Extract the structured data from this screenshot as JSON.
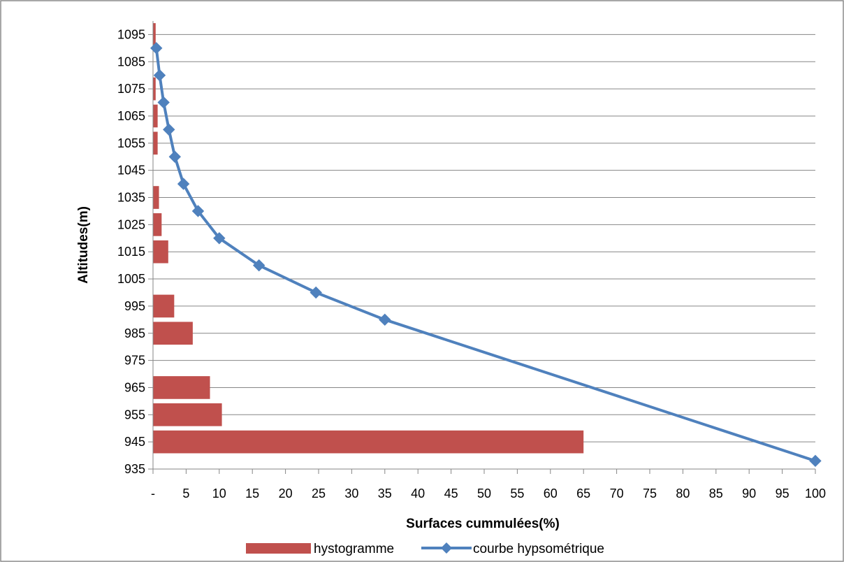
{
  "chart_data": {
    "type": "bar",
    "title": "",
    "xlabel": "Surfaces cummulées(%)",
    "ylabel": "Altitudes(m)",
    "xlim": [
      0,
      100
    ],
    "ylim": [
      935,
      1100
    ],
    "x_ticks": [
      0,
      5,
      10,
      15,
      20,
      25,
      30,
      35,
      40,
      45,
      50,
      55,
      60,
      65,
      70,
      75,
      80,
      85,
      90,
      95,
      100
    ],
    "x_tick_labels": [
      "-",
      "5",
      "10",
      "15",
      "20",
      "25",
      "30",
      "35",
      "40",
      "45",
      "50",
      "55",
      "60",
      "65",
      "70",
      "75",
      "80",
      "85",
      "90",
      "95",
      "100"
    ],
    "y_ticks": [
      935,
      945,
      955,
      965,
      975,
      985,
      995,
      1005,
      1015,
      1025,
      1035,
      1045,
      1055,
      1065,
      1075,
      1085,
      1095
    ],
    "y_tick_labels": [
      "935",
      "945",
      "955",
      "965",
      "975",
      "985",
      "995",
      "1005",
      "1015",
      "1025",
      "1035",
      "1045",
      "1055",
      "1065",
      "1075",
      "1085",
      "1095"
    ],
    "grid": true,
    "legend_position": "bottom",
    "series": [
      {
        "name": "hystogramme",
        "kind": "bar",
        "color": "#C0504D",
        "points": [
          {
            "altitude_from": 940,
            "altitude_to": 950,
            "value": 65.0
          },
          {
            "altitude_from": 950,
            "altitude_to": 960,
            "value": 10.4
          },
          {
            "altitude_from": 960,
            "altitude_to": 970,
            "value": 8.6
          },
          {
            "altitude_from": 970,
            "altitude_to": 980,
            "value": 0
          },
          {
            "altitude_from": 980,
            "altitude_to": 990,
            "value": 6.0
          },
          {
            "altitude_from": 990,
            "altitude_to": 1000,
            "value": 3.2
          },
          {
            "altitude_from": 1000,
            "altitude_to": 1010,
            "value": 0
          },
          {
            "altitude_from": 1010,
            "altitude_to": 1020,
            "value": 2.3
          },
          {
            "altitude_from": 1020,
            "altitude_to": 1030,
            "value": 1.3
          },
          {
            "altitude_from": 1030,
            "altitude_to": 1040,
            "value": 0.9
          },
          {
            "altitude_from": 1040,
            "altitude_to": 1050,
            "value": 0
          },
          {
            "altitude_from": 1050,
            "altitude_to": 1060,
            "value": 0.7
          },
          {
            "altitude_from": 1060,
            "altitude_to": 1070,
            "value": 0.7
          },
          {
            "altitude_from": 1070,
            "altitude_to": 1080,
            "value": 0.4
          },
          {
            "altitude_from": 1080,
            "altitude_to": 1090,
            "value": 0
          },
          {
            "altitude_from": 1090,
            "altitude_to": 1100,
            "value": 0.4
          }
        ]
      },
      {
        "name": "courbe hypsométrique",
        "kind": "line",
        "color": "#4F81BD",
        "marker": "diamond",
        "points": [
          {
            "x": 0.5,
            "y": 1090
          },
          {
            "x": 1.0,
            "y": 1080
          },
          {
            "x": 1.6,
            "y": 1070
          },
          {
            "x": 2.4,
            "y": 1060
          },
          {
            "x": 3.3,
            "y": 1050
          },
          {
            "x": 4.6,
            "y": 1040
          },
          {
            "x": 6.8,
            "y": 1030
          },
          {
            "x": 10.0,
            "y": 1020
          },
          {
            "x": 16.0,
            "y": 1010
          },
          {
            "x": 24.6,
            "y": 1000
          },
          {
            "x": 35.0,
            "y": 990
          },
          {
            "x": 100.0,
            "y": 938
          }
        ]
      }
    ]
  }
}
